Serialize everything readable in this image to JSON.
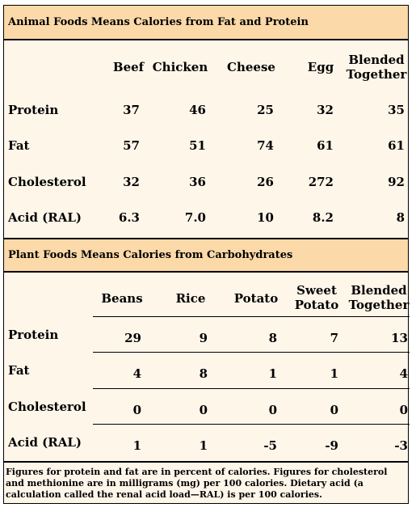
{
  "animal": {
    "title": "Animal Foods Means Calories from Fat and Protein",
    "columns": [
      "Beef",
      "Chicken",
      "Cheese",
      "Egg",
      "Blended Together"
    ],
    "rows": [
      {
        "label": "Protein",
        "values": [
          "37",
          "46",
          "25",
          "32",
          "35"
        ]
      },
      {
        "label": "Fat",
        "values": [
          "57",
          "51",
          "74",
          "61",
          "61"
        ]
      },
      {
        "label": "Cholesterol",
        "values": [
          "32",
          "36",
          "26",
          "272",
          "92"
        ]
      },
      {
        "label": "Acid (RAL)",
        "values": [
          "6.3",
          "7.0",
          "10",
          "8.2",
          "8"
        ]
      }
    ]
  },
  "plant": {
    "title": "Plant Foods Means Calories from Carbohydrates",
    "columns": [
      "Beans",
      "Rice",
      "Potato",
      "Sweet Potato",
      "Blended Together"
    ],
    "rows": [
      {
        "label": "Protein",
        "values": [
          "29",
          "9",
          "8",
          "7",
          "13"
        ]
      },
      {
        "label": "Fat",
        "values": [
          "4",
          "8",
          "1",
          "1",
          "4"
        ]
      },
      {
        "label": "Cholesterol",
        "values": [
          "0",
          "0",
          "0",
          "0",
          "0"
        ]
      },
      {
        "label": "Acid (RAL)",
        "values": [
          "1",
          "1",
          "-5",
          "-9",
          "-3"
        ]
      }
    ]
  },
  "footnote": "Figures for protein and fat are in percent of calories. Figures for cholesterol and methionine are in milligrams (mg) per 100 calories. Dietary acid (a calculation called the renal acid load—RAL) is per 100 calories."
}
